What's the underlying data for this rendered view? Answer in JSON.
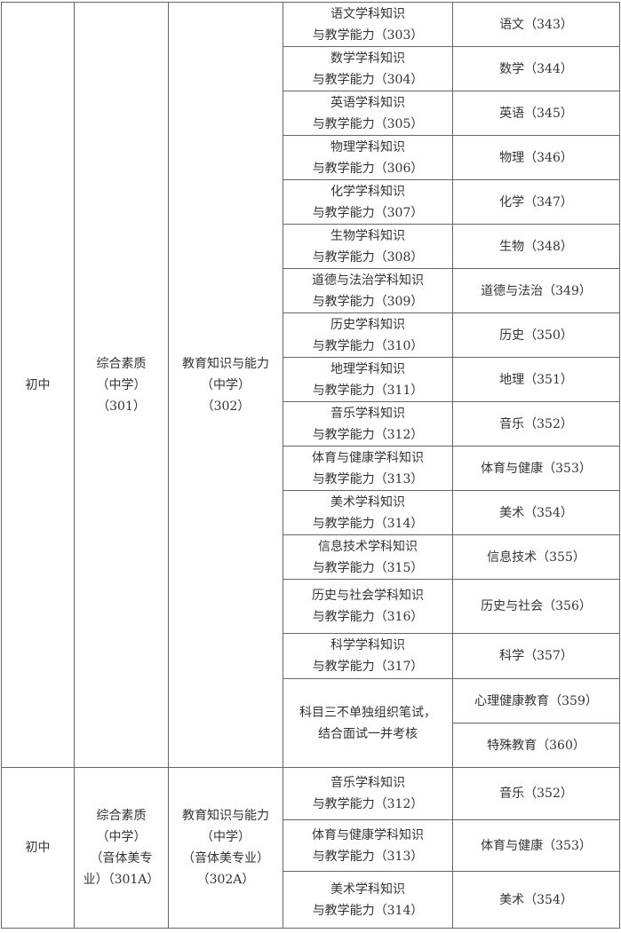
{
  "blocks": [
    {
      "level": "初中",
      "subject1": "综合素质\n（中学）\n（301）",
      "subject2": "教育知识与能力\n（中学）\n（302）",
      "rows": [
        {
          "s3": "语文学科知识\n与教学能力（303）",
          "iv": "语文（343）"
        },
        {
          "s3": "数学学科知识\n与教学能力（304）",
          "iv": "数学（344）"
        },
        {
          "s3": "英语学科知识\n与教学能力（305）",
          "iv": "英语（345）"
        },
        {
          "s3": "物理学科知识\n与教学能力（306）",
          "iv": "物理（346）"
        },
        {
          "s3": "化学学科知识\n与教学能力（307）",
          "iv": "化学（347）"
        },
        {
          "s3": "生物学科知识\n与教学能力（308）",
          "iv": "生物（348）"
        },
        {
          "s3": "道德与法治学科知识\n与教学能力（309）",
          "iv": "道德与法治（349）"
        },
        {
          "s3": "历史学科知识\n与教学能力（310）",
          "iv": "历史（350）"
        },
        {
          "s3": "地理学科知识\n与教学能力（311）",
          "iv": "地理（351）"
        },
        {
          "s3": "音乐学科知识\n与教学能力（312）",
          "iv": "音乐（352）"
        },
        {
          "s3": "体育与健康学科知识\n与教学能力（313）",
          "iv": "体育与健康（353）"
        },
        {
          "s3": "美术学科知识\n与教学能力（314）",
          "iv": "美术（354）"
        },
        {
          "s3": "信息技术学科知识\n与教学能力（315）",
          "iv": "信息技术（355）"
        },
        {
          "s3": "历史与社会学科知识\n与教学能力（316）",
          "iv": "历史与社会（356）"
        },
        {
          "s3": "科学学科知识\n与教学能力（317）",
          "iv": "科学（357）"
        }
      ],
      "merged": {
        "s3": "科目三不单独组织笔试，\n结合面试一并考核",
        "iv": [
          "心理健康教育（359）",
          "特殊教育（360）"
        ]
      }
    },
    {
      "level": "初中",
      "subject1": "综合素质\n（中学）\n（音体美专\n业）（301A）",
      "subject2": "教育知识与能力\n（中学）\n（音体美专业）\n（302A）",
      "rows": [
        {
          "s3": "音乐学科知识\n与教学能力（312）",
          "iv": "音乐（352）"
        },
        {
          "s3": "体育与健康学科知识\n与教学能力（313）",
          "iv": "体育与健康（353）"
        },
        {
          "s3": "美术学科知识\n与教学能力（314）",
          "iv": "美术（354）"
        }
      ]
    }
  ]
}
